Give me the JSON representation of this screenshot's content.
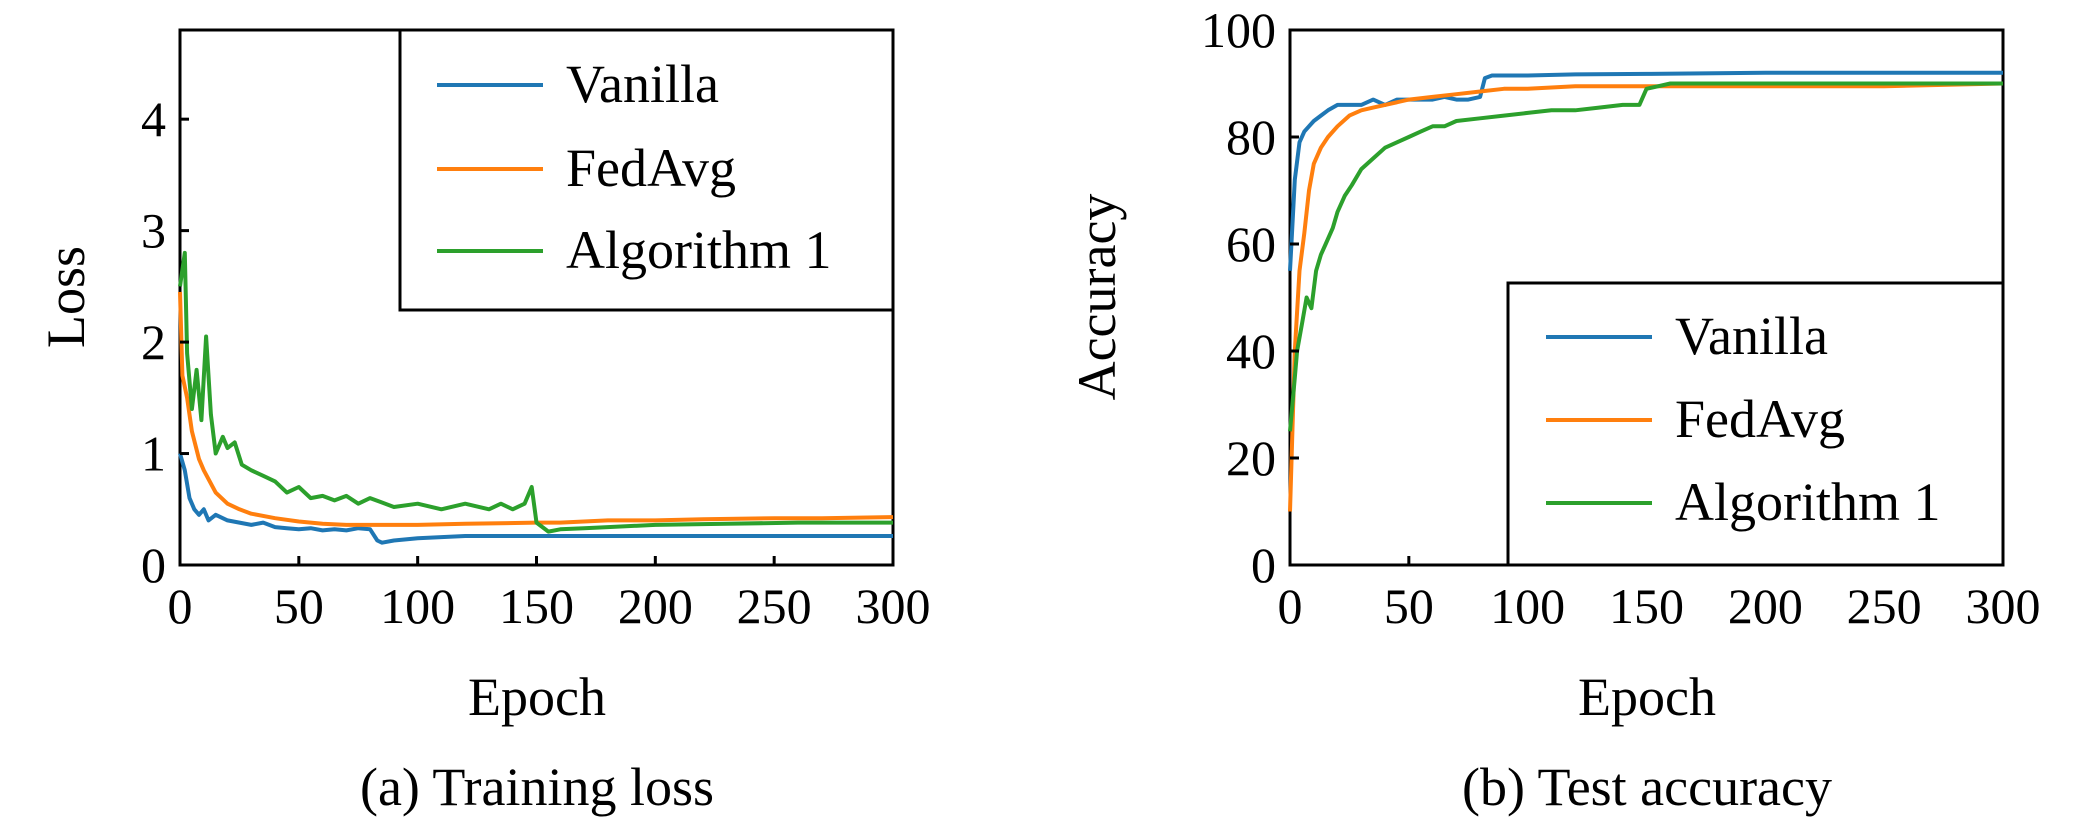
{
  "chart_data": [
    {
      "type": "line",
      "caption": "(a) Training loss",
      "xlabel": "Epoch",
      "ylabel": "Loss",
      "xlim": [
        0,
        300
      ],
      "ylim": [
        0,
        4.8
      ],
      "xticks": [
        0,
        50,
        100,
        150,
        200,
        250,
        300
      ],
      "yticks": [
        0,
        1,
        2,
        3,
        4
      ],
      "grid": false,
      "legend_position": "top-right",
      "series": [
        {
          "name": "Vanilla",
          "color": "#1f77b4",
          "x": [
            0,
            2,
            4,
            6,
            8,
            10,
            12,
            15,
            20,
            25,
            30,
            35,
            40,
            45,
            50,
            55,
            60,
            65,
            70,
            75,
            80,
            83,
            85,
            90,
            95,
            100,
            110,
            120,
            150,
            200,
            250,
            300
          ],
          "y": [
            1.0,
            0.85,
            0.6,
            0.5,
            0.45,
            0.5,
            0.4,
            0.45,
            0.4,
            0.38,
            0.36,
            0.38,
            0.34,
            0.33,
            0.32,
            0.33,
            0.31,
            0.32,
            0.31,
            0.33,
            0.32,
            0.22,
            0.2,
            0.22,
            0.23,
            0.24,
            0.25,
            0.26,
            0.26,
            0.26,
            0.26,
            0.26
          ]
        },
        {
          "name": "FedAvg",
          "color": "#ff7f0e",
          "x": [
            0,
            1,
            3,
            5,
            8,
            10,
            15,
            20,
            25,
            30,
            40,
            50,
            60,
            70,
            80,
            90,
            100,
            120,
            150,
            160,
            180,
            200,
            220,
            250,
            270,
            300
          ],
          "y": [
            2.45,
            1.7,
            1.5,
            1.2,
            0.95,
            0.85,
            0.65,
            0.55,
            0.5,
            0.46,
            0.42,
            0.39,
            0.37,
            0.36,
            0.36,
            0.36,
            0.36,
            0.37,
            0.38,
            0.38,
            0.4,
            0.4,
            0.41,
            0.42,
            0.42,
            0.43
          ]
        },
        {
          "name": "Algorithm 1",
          "color": "#2ca02c",
          "x": [
            0,
            2,
            3,
            5,
            7,
            9,
            11,
            13,
            15,
            18,
            20,
            23,
            26,
            30,
            35,
            40,
            45,
            50,
            55,
            60,
            65,
            70,
            75,
            80,
            90,
            100,
            110,
            120,
            130,
            135,
            140,
            145,
            148,
            150,
            155,
            160,
            170,
            180,
            200,
            230,
            260,
            300
          ],
          "y": [
            2.5,
            2.8,
            1.9,
            1.4,
            1.75,
            1.3,
            2.05,
            1.35,
            1.0,
            1.15,
            1.05,
            1.1,
            0.9,
            0.85,
            0.8,
            0.75,
            0.65,
            0.7,
            0.6,
            0.62,
            0.58,
            0.62,
            0.55,
            0.6,
            0.52,
            0.55,
            0.5,
            0.55,
            0.5,
            0.55,
            0.5,
            0.55,
            0.7,
            0.38,
            0.3,
            0.32,
            0.33,
            0.34,
            0.36,
            0.37,
            0.38,
            0.38
          ]
        }
      ]
    },
    {
      "type": "line",
      "caption": "(b) Test accuracy",
      "xlabel": "Epoch",
      "ylabel": "Accuracy",
      "xlim": [
        0,
        300
      ],
      "ylim": [
        0,
        100
      ],
      "xticks": [
        0,
        50,
        100,
        150,
        200,
        250,
        300
      ],
      "yticks": [
        0,
        20,
        40,
        60,
        80,
        100
      ],
      "grid": false,
      "legend_position": "bottom-right",
      "series": [
        {
          "name": "Vanilla",
          "color": "#1f77b4",
          "x": [
            0,
            2,
            4,
            6,
            8,
            10,
            13,
            16,
            20,
            25,
            30,
            35,
            40,
            45,
            50,
            55,
            60,
            65,
            70,
            75,
            80,
            82,
            85,
            90,
            100,
            120,
            150,
            200,
            250,
            300
          ],
          "y": [
            55,
            72,
            79,
            81,
            82,
            83,
            84,
            85,
            86,
            86,
            86,
            87,
            86,
            87,
            87,
            87,
            87,
            87.5,
            87,
            87,
            87.5,
            91,
            91.5,
            91.5,
            91.5,
            91.7,
            91.8,
            92,
            92,
            92
          ]
        },
        {
          "name": "FedAvg",
          "color": "#ff7f0e",
          "x": [
            0,
            1,
            2,
            4,
            6,
            8,
            10,
            13,
            16,
            20,
            25,
            30,
            35,
            40,
            50,
            60,
            70,
            80,
            90,
            100,
            120,
            140,
            150,
            160,
            180,
            200,
            250,
            300
          ],
          "y": [
            10,
            25,
            40,
            55,
            62,
            70,
            75,
            78,
            80,
            82,
            84,
            85,
            85.5,
            86,
            87,
            87.5,
            88,
            88.5,
            89,
            89,
            89.5,
            89.5,
            89.5,
            89.5,
            89.5,
            89.5,
            89.5,
            90
          ]
        },
        {
          "name": "Algorithm 1",
          "color": "#2ca02c",
          "x": [
            0,
            1,
            2,
            3,
            5,
            7,
            9,
            11,
            13,
            15,
            18,
            20,
            23,
            26,
            30,
            35,
            40,
            45,
            50,
            55,
            60,
            65,
            70,
            80,
            90,
            100,
            110,
            120,
            130,
            140,
            147,
            150,
            155,
            160,
            180,
            200,
            250,
            300
          ],
          "y": [
            25,
            30,
            35,
            40,
            45,
            50,
            48,
            55,
            58,
            60,
            63,
            66,
            69,
            71,
            74,
            76,
            78,
            79,
            80,
            81,
            82,
            82,
            83,
            83.5,
            84,
            84.5,
            85,
            85,
            85.5,
            86,
            86,
            89,
            89.5,
            90,
            90,
            90,
            90,
            90
          ]
        }
      ]
    }
  ]
}
